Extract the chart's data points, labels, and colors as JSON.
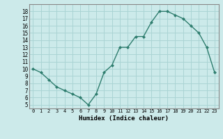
{
  "x": [
    0,
    1,
    2,
    3,
    4,
    5,
    6,
    7,
    8,
    9,
    10,
    11,
    12,
    13,
    14,
    15,
    16,
    17,
    18,
    19,
    20,
    21,
    22,
    23
  ],
  "y": [
    10,
    9.5,
    8.5,
    7.5,
    7,
    6.5,
    6,
    5,
    6.5,
    9.5,
    10.5,
    13,
    13,
    14.5,
    14.5,
    16.5,
    18,
    18,
    17.5,
    17,
    16,
    15,
    13,
    9.5
  ],
  "line_color": "#2e7d6e",
  "marker_color": "#2e7d6e",
  "bg_color": "#cceaea",
  "grid_color": "#aad4d4",
  "xlabel": "Humidex (Indice chaleur)",
  "ylim": [
    4.5,
    19
  ],
  "xlim": [
    -0.5,
    23.5
  ],
  "yticks": [
    5,
    6,
    7,
    8,
    9,
    10,
    11,
    12,
    13,
    14,
    15,
    16,
    17,
    18
  ],
  "xticks": [
    0,
    1,
    2,
    3,
    4,
    5,
    6,
    7,
    8,
    9,
    10,
    11,
    12,
    13,
    14,
    15,
    16,
    17,
    18,
    19,
    20,
    21,
    22,
    23
  ],
  "xtick_labels": [
    "0",
    "1",
    "2",
    "3",
    "4",
    "5",
    "6",
    "7",
    "8",
    "9",
    "10",
    "11",
    "12",
    "13",
    "14",
    "15",
    "16",
    "17",
    "18",
    "19",
    "20",
    "21",
    "22",
    "23"
  ]
}
